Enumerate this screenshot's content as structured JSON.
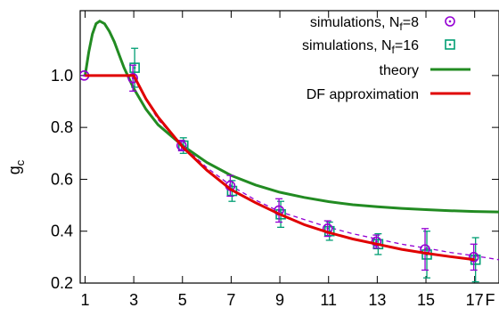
{
  "chart_data": {
    "type": "line",
    "title": "",
    "xlabel": "F",
    "ylabel": "g",
    "ylabel_sub": "c",
    "xlim": [
      0.8,
      18.0
    ],
    "ylim": [
      0.2,
      1.25
    ],
    "xticks": [
      1,
      3,
      5,
      7,
      9,
      11,
      13,
      15,
      17
    ],
    "yticks": [
      0.2,
      0.4,
      0.6,
      0.8,
      1.0
    ],
    "ytick_labels": [
      "0.2",
      "0.4",
      "0.6",
      "0.8",
      "1.0"
    ],
    "grid": false,
    "legend_position": "top-right",
    "legend": [
      {
        "key": "sim8",
        "text": "simulations, N",
        "sub": "f",
        "suffix": "=8",
        "marker": "circle-dot"
      },
      {
        "key": "sim16",
        "text": "simulations, N",
        "sub": "f",
        "suffix": "=16",
        "marker": "square-dot"
      },
      {
        "key": "theory",
        "text": "theory",
        "marker": "line"
      },
      {
        "key": "df",
        "text": "DF approximation",
        "marker": "line"
      }
    ],
    "series": [
      {
        "key": "sim8",
        "kind": "points",
        "color": "#9400d3",
        "x": [
          1,
          3,
          5,
          7,
          9,
          11,
          13,
          15,
          17
        ],
        "y": [
          1.0,
          0.99,
          0.73,
          0.575,
          0.48,
          0.41,
          0.36,
          0.33,
          0.3
        ],
        "yerr": [
          0.0,
          0.05,
          0.02,
          0.04,
          0.045,
          0.03,
          0.025,
          0.08,
          0.05
        ]
      },
      {
        "key": "sim16",
        "kind": "points",
        "color": "#009e73",
        "x": [
          3,
          5,
          7,
          9,
          11,
          13,
          15,
          17
        ],
        "y": [
          1.03,
          0.73,
          0.555,
          0.465,
          0.4,
          0.35,
          0.31,
          0.29
        ],
        "yerr": [
          0.075,
          0.03,
          0.04,
          0.05,
          0.035,
          0.04,
          0.09,
          0.085
        ]
      },
      {
        "key": "theory",
        "kind": "line",
        "color": "#228b22",
        "x": [
          1.0,
          1.15,
          1.3,
          1.45,
          1.6,
          1.8,
          2.0,
          2.2,
          2.4,
          2.6,
          2.8,
          3.0,
          3.5,
          4,
          5,
          6,
          7,
          8,
          9,
          10,
          11,
          12,
          13,
          14,
          15,
          16,
          17,
          18
        ],
        "y": [
          1.0,
          1.09,
          1.16,
          1.2,
          1.21,
          1.2,
          1.17,
          1.13,
          1.08,
          1.03,
          0.99,
          0.95,
          0.87,
          0.81,
          0.73,
          0.665,
          0.615,
          0.578,
          0.55,
          0.53,
          0.514,
          0.502,
          0.494,
          0.488,
          0.483,
          0.479,
          0.476,
          0.474
        ]
      },
      {
        "key": "df",
        "kind": "line",
        "color": "#e00000",
        "x": [
          1,
          3,
          3.5,
          4,
          5,
          6,
          7,
          8,
          9,
          10,
          11,
          12,
          13,
          14,
          15,
          16,
          17
        ],
        "y": [
          1.0,
          1.0,
          0.91,
          0.84,
          0.725,
          0.635,
          0.56,
          0.51,
          0.465,
          0.425,
          0.395,
          0.37,
          0.35,
          0.33,
          0.315,
          0.302,
          0.29
        ]
      },
      {
        "key": "fit",
        "kind": "dashed",
        "color": "#9400d3",
        "x": [
          3,
          4,
          5,
          6,
          7,
          8,
          9,
          10,
          11,
          12,
          13,
          14,
          15,
          16,
          17,
          18
        ],
        "y": [
          0.99,
          0.83,
          0.73,
          0.645,
          0.575,
          0.52,
          0.475,
          0.445,
          0.415,
          0.39,
          0.37,
          0.35,
          0.335,
          0.318,
          0.305,
          0.29
        ]
      }
    ]
  }
}
